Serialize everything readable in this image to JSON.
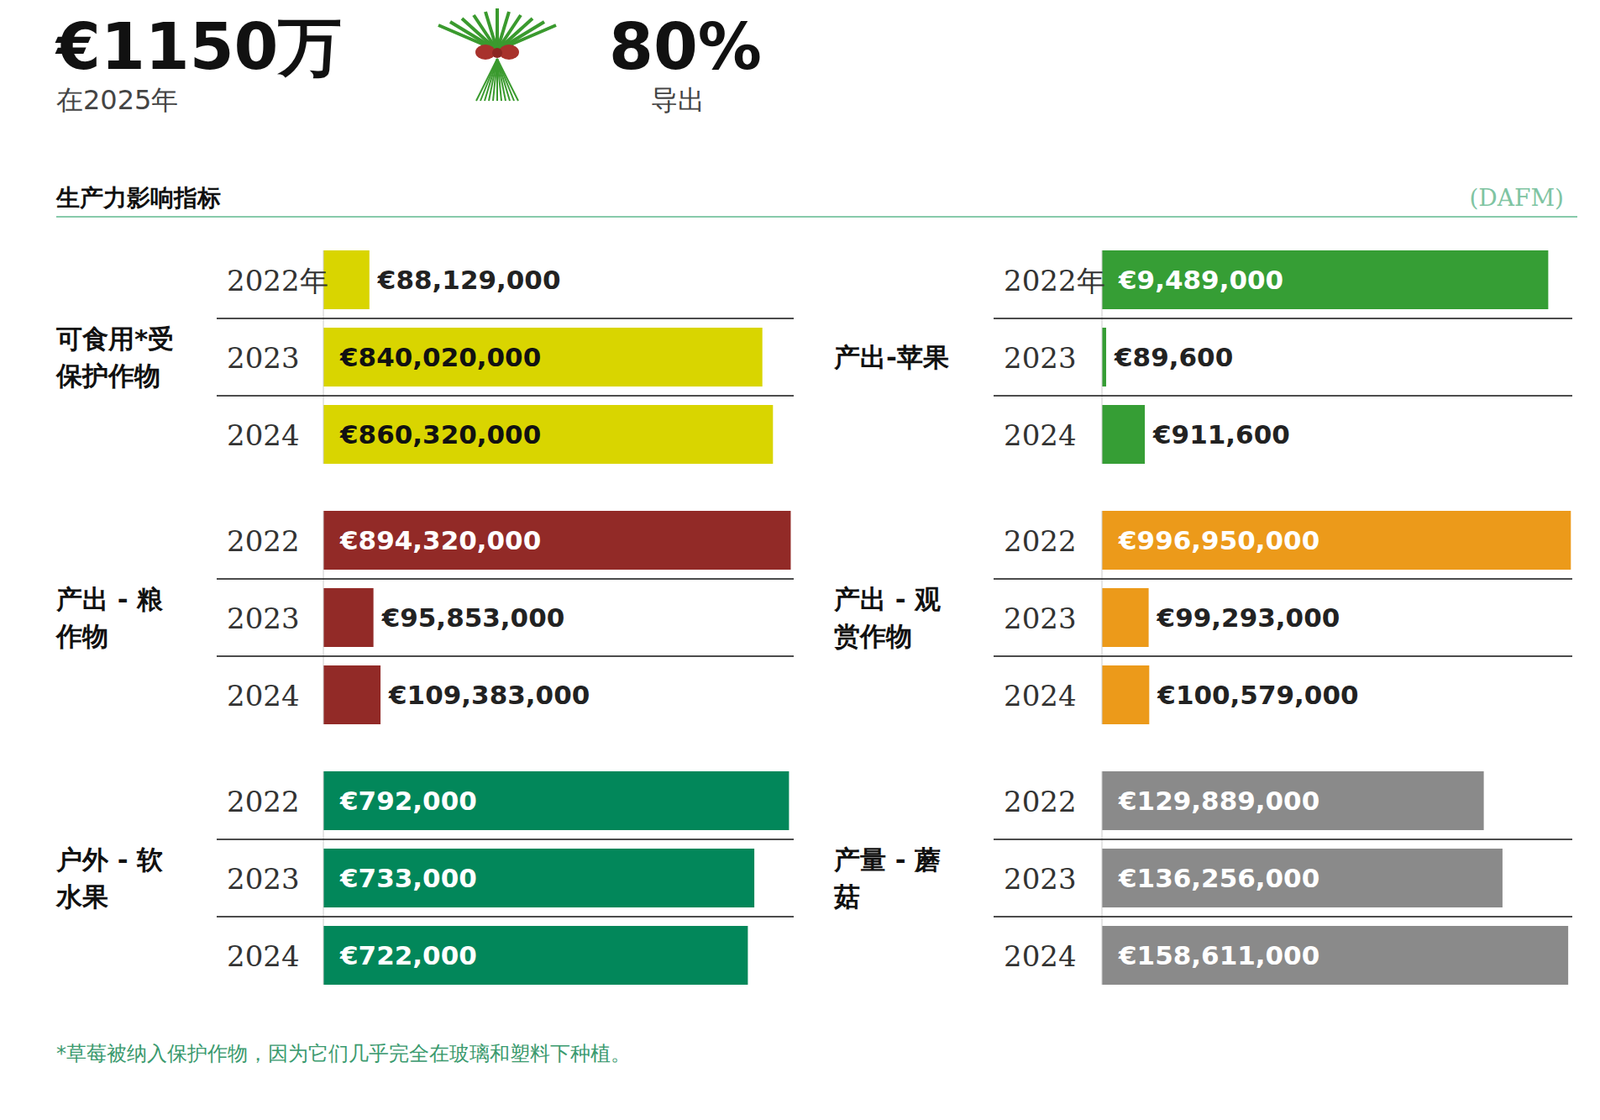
{
  "header": {
    "stats": [
      {
        "value_text": "€1150万",
        "label": "在2025年"
      },
      {
        "value_text": "80%",
        "label": "导出"
      }
    ],
    "section_title": "生产力影响指标",
    "source": "(DAFM)",
    "footnote": "*草莓被纳入保护作物，因为它们几乎完全在玻璃和塑料下种植。"
  },
  "chart_data": [
    {
      "type": "bar",
      "orientation": "horizontal",
      "title": "可食用*受保护作物",
      "categories": [
        "2022年",
        "2023",
        "2024"
      ],
      "values": [
        88129000,
        840020000,
        860320000
      ],
      "value_labels": [
        "€88,129,000",
        "€840,020,000",
        "€860,320,000"
      ],
      "color": "#d9d500",
      "xlim": [
        0,
        900000000
      ],
      "data_labels": true,
      "tick_labels": "y"
    },
    {
      "type": "bar",
      "orientation": "horizontal",
      "title": "产出-苹果",
      "categories": [
        "2022年",
        "2023",
        "2024"
      ],
      "values": [
        9489000,
        89600,
        911600
      ],
      "value_labels": [
        "€9,489,000",
        "€89,600",
        "€911,600"
      ],
      "color": "#369e35",
      "xlim": [
        0,
        10000000
      ],
      "data_labels": true,
      "tick_labels": "y"
    },
    {
      "type": "bar",
      "orientation": "horizontal",
      "title": "产出 - 粮作物",
      "categories": [
        "2022",
        "2023",
        "2024"
      ],
      "values": [
        894320000,
        95853000,
        109383000
      ],
      "value_labels": [
        "€894,320,000",
        "€95,853,000",
        "€109,383,000"
      ],
      "color": "#922a27",
      "xlim": [
        0,
        900000000
      ],
      "data_labels": true,
      "tick_labels": "y"
    },
    {
      "type": "bar",
      "orientation": "horizontal",
      "title": "产出 - 观赏作物",
      "categories": [
        "2022",
        "2023",
        "2024"
      ],
      "values": [
        996950000,
        99293000,
        100579000
      ],
      "value_labels": [
        "€996,950,000",
        "€99,293,000",
        "€100,579,000"
      ],
      "color": "#ec9a1a",
      "xlim": [
        0,
        1000000000
      ],
      "data_labels": true,
      "tick_labels": "y"
    },
    {
      "type": "bar",
      "orientation": "horizontal",
      "title": "户外 - 软水果",
      "categories": [
        "2022",
        "2023",
        "2024"
      ],
      "values": [
        792000,
        733000,
        722000
      ],
      "value_labels": [
        "€792,000",
        "€733,000",
        "€722,000"
      ],
      "color": "#02875a",
      "xlim": [
        0,
        800000
      ],
      "data_labels": true,
      "tick_labels": "y"
    },
    {
      "type": "bar",
      "orientation": "horizontal",
      "title": "产量 - 蘑菇",
      "categories": [
        "2022",
        "2023",
        "2024"
      ],
      "values": [
        129889000,
        136256000,
        158611000
      ],
      "value_labels": [
        "€129,889,000",
        "€136,256,000",
        "€158,611,000"
      ],
      "color": "#8a8a8a",
      "xlim": [
        0,
        160000000
      ],
      "data_labels": true,
      "tick_labels": "y"
    }
  ]
}
